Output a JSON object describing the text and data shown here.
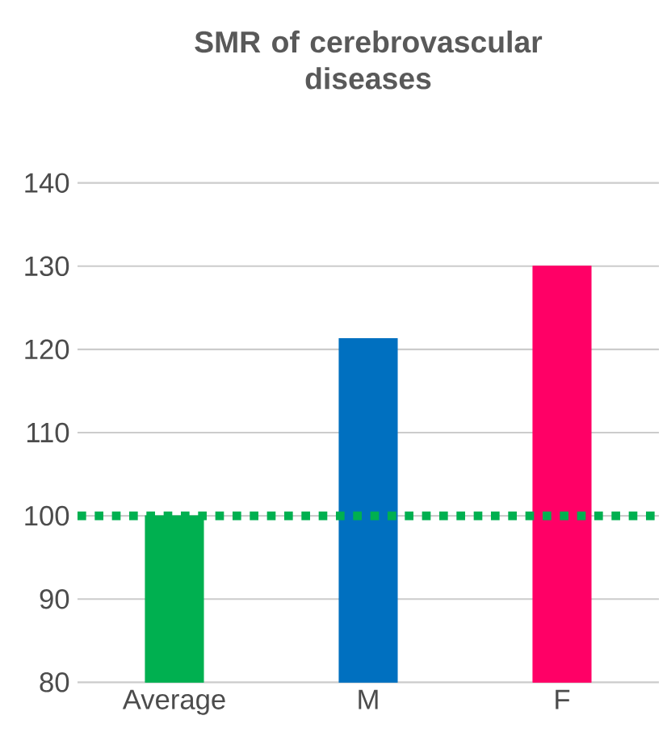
{
  "chart_data": {
    "type": "bar",
    "title": "SMR of cerebrovascular diseases",
    "categories": [
      "Average",
      "M",
      "F"
    ],
    "values": [
      100,
      121.3,
      130
    ],
    "colors": [
      "#00b050",
      "#0070c0",
      "#ff0066"
    ],
    "ylim": [
      80,
      140
    ],
    "yticks": [
      80,
      90,
      100,
      110,
      120,
      130,
      140
    ],
    "grid": "y",
    "ref_lines": [
      {
        "axis": "y",
        "value": 100,
        "color": "#00b050",
        "line_style": "dotted"
      }
    ]
  }
}
